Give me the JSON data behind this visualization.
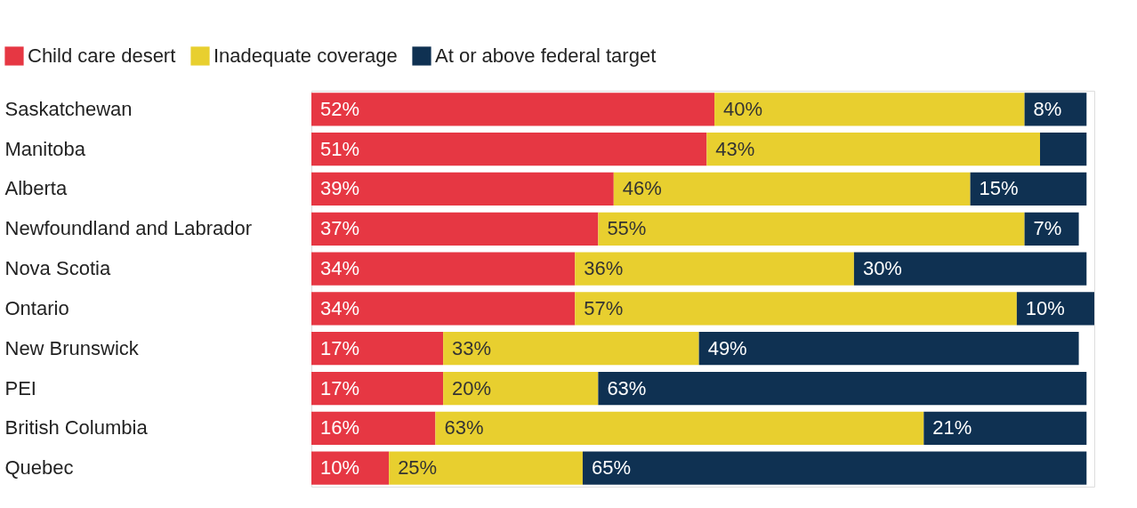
{
  "chart_data": {
    "type": "bar",
    "orientation": "horizontal",
    "stacked": true,
    "legend": "top left",
    "xlim": [
      0,
      101
    ],
    "tick_labels": "y",
    "categories": [
      "Saskatchewan",
      "Manitoba",
      "Alberta",
      "Newfoundland and Labrador",
      "Nova Scotia",
      "Ontario",
      "New Brunswick",
      "PEI",
      "British Columbia",
      "Quebec"
    ],
    "series": [
      {
        "name": "Child care desert",
        "color": "#e63743",
        "values": [
          52,
          51,
          39,
          37,
          34,
          34,
          17,
          17,
          16,
          10
        ],
        "value_labels": [
          "52%",
          "51%",
          "39%",
          "37%",
          "34%",
          "34%",
          "17%",
          "17%",
          "16%",
          "10%"
        ]
      },
      {
        "name": "Inadequate coverage",
        "color": "#e8cf2f",
        "values": [
          40,
          43,
          46,
          55,
          36,
          57,
          33,
          20,
          63,
          25
        ],
        "value_labels": [
          "40%",
          "43%",
          "46%",
          "55%",
          "36%",
          "57%",
          "33%",
          "20%",
          "63%",
          "25%"
        ]
      },
      {
        "name": "At or above federal target",
        "color": "#0f3152",
        "values": [
          8,
          6,
          15,
          7,
          30,
          10,
          49,
          63,
          21,
          65
        ],
        "value_labels": [
          "8%",
          null,
          "15%",
          "7%",
          "30%",
          "10%",
          "49%",
          "63%",
          "21%",
          "65%"
        ]
      }
    ]
  }
}
